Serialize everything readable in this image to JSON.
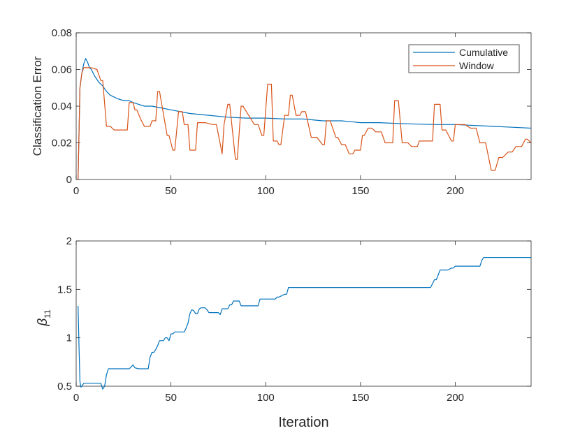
{
  "colors": {
    "cumulative": "#0072BD",
    "window": "#D95319",
    "axis": "#262626"
  },
  "chart_data": [
    {
      "type": "line",
      "xlabel": "",
      "ylabel": "Classification Error",
      "xlim": [
        0,
        240
      ],
      "ylim": [
        0,
        0.08
      ],
      "xticks": [
        0,
        50,
        100,
        150,
        200
      ],
      "xtick_labels": [
        "0",
        "50",
        "100",
        "150",
        "200"
      ],
      "yticks": [
        0,
        0.02,
        0.04,
        0.06,
        0.08
      ],
      "ytick_labels": [
        "0",
        "0.02",
        "0.04",
        "0.06",
        "0.08"
      ],
      "legend_position": "top-right",
      "grid": false,
      "series": [
        {
          "name": "Cumulative",
          "x": [
            1,
            2,
            3,
            4,
            5,
            6,
            7,
            8,
            9,
            10,
            12,
            14,
            16,
            18,
            20,
            22,
            25,
            28,
            30,
            33,
            36,
            40,
            45,
            50,
            55,
            60,
            70,
            80,
            90,
            100,
            110,
            120,
            130,
            140,
            150,
            160,
            170,
            180,
            190,
            200,
            210,
            220,
            230,
            240
          ],
          "y": [
            0,
            0.05,
            0.058,
            0.063,
            0.066,
            0.064,
            0.061,
            0.06,
            0.058,
            0.056,
            0.053,
            0.051,
            0.048,
            0.046,
            0.045,
            0.044,
            0.043,
            0.043,
            0.042,
            0.041,
            0.04,
            0.04,
            0.039,
            0.038,
            0.037,
            0.036,
            0.035,
            0.034,
            0.0335,
            0.0335,
            0.033,
            0.033,
            0.032,
            0.032,
            0.031,
            0.031,
            0.0305,
            0.0302,
            0.03,
            0.03,
            0.0295,
            0.029,
            0.0285,
            0.028
          ]
        },
        {
          "name": "Window",
          "x": [
            1,
            2,
            3,
            4,
            5,
            8,
            11,
            13,
            14,
            16,
            18,
            20,
            24,
            27,
            28,
            30,
            31,
            32,
            34,
            36,
            38,
            39,
            40,
            42,
            43,
            44,
            48,
            49,
            51,
            52,
            54,
            56,
            57,
            59,
            60,
            63,
            64,
            66,
            68,
            72,
            74,
            77,
            78,
            80,
            81,
            84,
            85,
            87,
            88,
            91,
            94,
            96,
            97,
            98,
            99,
            101,
            103,
            104,
            106,
            107,
            108,
            110,
            112,
            113,
            114,
            116,
            118,
            119,
            121,
            124,
            127,
            130,
            131,
            132,
            134,
            137,
            138,
            140,
            142,
            144,
            146,
            147,
            150,
            151,
            152,
            154,
            156,
            158,
            159,
            161,
            163,
            165,
            167,
            168,
            170,
            172,
            173,
            175,
            177,
            180,
            181,
            183,
            185,
            188,
            189,
            192,
            193,
            195,
            198,
            199,
            200,
            205,
            208,
            211,
            213,
            215,
            216,
            219,
            221,
            223,
            225,
            228,
            230,
            232,
            235,
            237,
            238,
            240
          ],
          "y": [
            0,
            0.05,
            0.058,
            0.061,
            0.061,
            0.061,
            0.06,
            0.054,
            0.054,
            0.029,
            0.029,
            0.027,
            0.027,
            0.027,
            0.042,
            0.042,
            0.038,
            0.038,
            0.033,
            0.029,
            0.029,
            0.029,
            0.032,
            0.032,
            0.048,
            0.048,
            0.024,
            0.024,
            0.016,
            0.016,
            0.037,
            0.037,
            0.03,
            0.03,
            0.016,
            0.016,
            0.031,
            0.031,
            0.031,
            0.03,
            0.03,
            0.014,
            0.03,
            0.041,
            0.041,
            0.011,
            0.011,
            0.04,
            0.04,
            0.035,
            0.03,
            0.03,
            0.027,
            0.024,
            0.024,
            0.052,
            0.052,
            0.021,
            0.021,
            0.019,
            0.019,
            0.035,
            0.035,
            0.046,
            0.046,
            0.035,
            0.035,
            0.037,
            0.037,
            0.023,
            0.023,
            0.019,
            0.019,
            0.032,
            0.032,
            0.023,
            0.023,
            0.019,
            0.019,
            0.014,
            0.014,
            0.016,
            0.016,
            0.024,
            0.024,
            0.028,
            0.028,
            0.026,
            0.026,
            0.026,
            0.02,
            0.02,
            0.02,
            0.043,
            0.043,
            0.02,
            0.02,
            0.02,
            0.018,
            0.018,
            0.021,
            0.021,
            0.021,
            0.021,
            0.041,
            0.041,
            0.027,
            0.027,
            0.021,
            0.021,
            0.03,
            0.03,
            0.028,
            0.028,
            0.02,
            0.02,
            0.02,
            0.005,
            0.005,
            0.012,
            0.012,
            0.015,
            0.015,
            0.018,
            0.018,
            0.022,
            0.022,
            0.02
          ]
        }
      ]
    },
    {
      "type": "line",
      "xlabel": "Iteration",
      "ylabel": "β11",
      "ylabel_base": "β",
      "ylabel_sub": "11",
      "xlim": [
        0,
        240
      ],
      "ylim": [
        0.5,
        2
      ],
      "xticks": [
        0,
        50,
        100,
        150,
        200
      ],
      "xtick_labels": [
        "0",
        "50",
        "100",
        "150",
        "200"
      ],
      "yticks": [
        0.5,
        1,
        1.5,
        2
      ],
      "ytick_labels": [
        "0.5",
        "1",
        "1.5",
        "2"
      ],
      "grid": false,
      "series": [
        {
          "x": [
            1,
            1.5,
            2,
            2.5,
            3,
            4,
            5,
            10,
            13,
            14,
            15,
            16,
            17,
            18,
            20,
            24,
            28,
            29,
            30,
            31,
            33,
            36,
            38,
            39,
            40,
            41,
            42,
            43,
            44,
            45,
            46,
            47,
            48,
            49,
            50,
            51,
            52,
            53,
            55,
            57,
            58,
            59,
            60,
            61,
            62,
            63,
            64,
            65,
            66,
            68,
            69,
            70,
            72,
            75,
            76,
            77,
            78,
            80,
            81,
            82,
            83,
            85,
            86,
            87,
            88,
            90,
            96,
            97,
            98,
            99,
            100,
            105,
            106,
            107,
            110,
            111,
            112,
            113,
            150,
            187,
            188,
            189,
            190,
            191,
            192,
            193,
            196,
            198,
            199,
            200,
            210,
            212,
            213,
            214,
            215,
            225,
            240
          ],
          "y": [
            1.33,
            0.9,
            0.55,
            0.49,
            0.5,
            0.53,
            0.53,
            0.53,
            0.53,
            0.47,
            0.5,
            0.62,
            0.68,
            0.68,
            0.68,
            0.68,
            0.68,
            0.7,
            0.72,
            0.69,
            0.68,
            0.68,
            0.68,
            0.8,
            0.85,
            0.85,
            0.88,
            0.92,
            0.97,
            0.97,
            0.97,
            1.0,
            1.0,
            0.97,
            1.04,
            1.04,
            1.06,
            1.06,
            1.06,
            1.06,
            1.1,
            1.15,
            1.25,
            1.29,
            1.28,
            1.25,
            1.25,
            1.3,
            1.31,
            1.31,
            1.29,
            1.26,
            1.26,
            1.26,
            1.24,
            1.3,
            1.3,
            1.3,
            1.34,
            1.34,
            1.38,
            1.38,
            1.38,
            1.33,
            1.33,
            1.33,
            1.33,
            1.4,
            1.4,
            1.4,
            1.4,
            1.4,
            1.42,
            1.42,
            1.45,
            1.45,
            1.52,
            1.52,
            1.52,
            1.52,
            1.56,
            1.6,
            1.6,
            1.65,
            1.7,
            1.7,
            1.7,
            1.72,
            1.72,
            1.74,
            1.74,
            1.74,
            1.74,
            1.8,
            1.83,
            1.83,
            1.83
          ]
        }
      ]
    }
  ]
}
